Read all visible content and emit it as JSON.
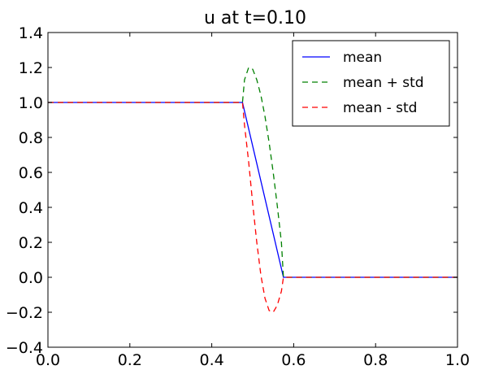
{
  "chart_data": {
    "type": "line",
    "title": "u at t=0.10",
    "xlabel": "",
    "ylabel": "",
    "xlim": [
      0.0,
      1.0
    ],
    "ylim": [
      -0.4,
      1.4
    ],
    "xticks": [
      "0.0",
      "0.2",
      "0.4",
      "0.6",
      "0.8",
      "1.0"
    ],
    "yticks": [
      "−0.4",
      "−0.2",
      "0.0",
      "0.2",
      "0.4",
      "0.6",
      "0.8",
      "1.0",
      "1.2",
      "1.4"
    ],
    "grid": false,
    "legend_position": "top-right",
    "series": [
      {
        "name": "mean",
        "color": "#0000ff",
        "style": "solid",
        "x": [
          0.0,
          0.475,
          0.575,
          1.0
        ],
        "y": [
          1.0,
          1.0,
          0.0,
          0.0
        ]
      },
      {
        "name": "mean + std",
        "color": "#008000",
        "style": "dashed",
        "x": [
          0.0,
          0.475,
          0.48,
          0.49,
          0.5,
          0.51,
          0.52,
          0.53,
          0.54,
          0.55,
          0.56,
          0.57,
          0.575,
          1.0
        ],
        "y": [
          1.0,
          1.0,
          1.13,
          1.2,
          1.19,
          1.13,
          1.04,
          0.92,
          0.77,
          0.6,
          0.41,
          0.2,
          0.0,
          0.0
        ]
      },
      {
        "name": "mean - std",
        "color": "#ff0000",
        "style": "dashed",
        "x": [
          0.0,
          0.475,
          0.48,
          0.49,
          0.5,
          0.51,
          0.52,
          0.53,
          0.54,
          0.55,
          0.56,
          0.57,
          0.575,
          1.0
        ],
        "y": [
          1.0,
          1.0,
          0.87,
          0.66,
          0.42,
          0.2,
          0.01,
          -0.12,
          -0.19,
          -0.2,
          -0.16,
          -0.08,
          0.0,
          0.0
        ]
      }
    ]
  }
}
